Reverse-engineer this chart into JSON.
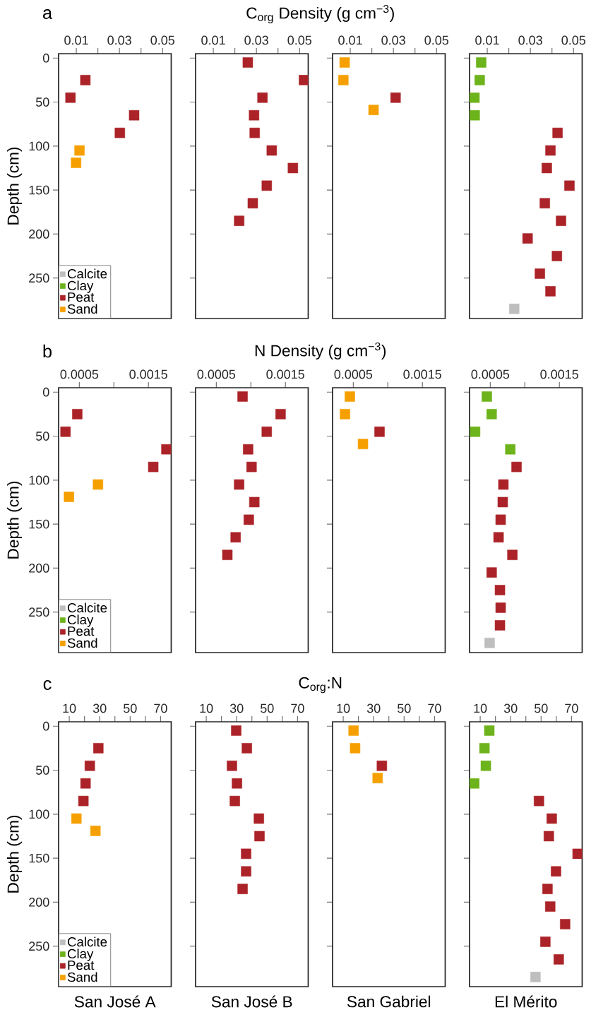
{
  "chart_data": [
    {
      "type": "scatter",
      "title": "a",
      "ylabel": "Depth (cm)",
      "legend": "bottom left",
      "marker": "square",
      "xlim": [
        0.0018,
        0.054
      ],
      "xticks": [
        0.01,
        {
          "value": 0.02,
          "label": null
        },
        0.03,
        {
          "value": 0.04,
          "label": null
        },
        0.05
      ],
      "ylim": [
        296,
        -5
      ],
      "yticks": [
        0,
        50,
        100,
        150,
        200,
        250
      ],
      "series": [
        {
          "name": "Calcite",
          "color": "#bebebe"
        },
        {
          "name": "Clay",
          "color": "#6db31b"
        },
        {
          "name": "Peat",
          "color": "#ab2328",
          "x": [
            0.0142,
            0.0073,
            0.0368,
            0.0302
          ],
          "values": [
            25,
            45,
            65,
            85
          ]
        },
        {
          "name": "Sand",
          "color": "#f5a000",
          "x": [
            0.0115,
            0.0099
          ],
          "values": [
            105,
            119
          ]
        }
      ]
    },
    {
      "type": "scatter",
      "xlabel": "C$_{org}$ Density (g cm$^{−3}$)",
      "marker": "square",
      "tick_labels": "x",
      "xlim": [
        0.0018,
        0.054
      ],
      "xticks": [
        0.01,
        {
          "value": 0.02,
          "label": null
        },
        0.03,
        {
          "value": 0.04,
          "label": null
        },
        0.05
      ],
      "ylim": [
        296,
        -5
      ],
      "yticks": [
        0,
        50,
        100,
        150,
        200,
        250
      ],
      "series": [
        {
          "color": "#ab2328",
          "x": [
            0.026,
            0.052,
            0.0328,
            0.0289,
            0.0292,
            0.0371,
            0.0469,
            0.0348,
            0.0283,
            0.022
          ],
          "values": [
            5,
            25,
            45,
            65,
            85,
            105,
            125,
            145,
            165,
            185
          ]
        }
      ]
    },
    {
      "type": "scatter",
      "marker": "square",
      "tick_labels": "x",
      "xlim": [
        0.0018,
        0.054
      ],
      "xticks": [
        0.01,
        {
          "value": 0.02,
          "label": null
        },
        0.03,
        {
          "value": 0.04,
          "label": null
        },
        0.05
      ],
      "ylim": [
        296,
        -5
      ],
      "yticks": [
        0,
        50,
        100,
        150,
        200,
        250
      ],
      "series": [
        {
          "color": "#ab2328",
          "x": [
            0.031
          ],
          "values": [
            45
          ]
        },
        {
          "color": "#f5a000",
          "x": [
            0.0074,
            0.0068,
            0.0208
          ],
          "values": [
            5,
            25,
            59
          ]
        }
      ]
    },
    {
      "type": "scatter",
      "marker": "square",
      "tick_labels": "x",
      "xlim": [
        0.0018,
        0.054
      ],
      "xticks": [
        0.01,
        {
          "value": 0.02,
          "label": null
        },
        0.03,
        {
          "value": 0.04,
          "label": null
        },
        0.05
      ],
      "ylim": [
        296,
        -5
      ],
      "yticks": [
        0,
        50,
        100,
        150,
        200,
        250
      ],
      "series": [
        {
          "color": "#bebebe",
          "x": [
            0.0225
          ],
          "values": [
            285
          ]
        },
        {
          "color": "#6db31b",
          "x": [
            0.0072,
            0.0065,
            0.0041,
            0.0042
          ],
          "values": [
            5,
            25,
            45,
            65
          ]
        },
        {
          "color": "#ab2328",
          "x": [
            0.0426,
            0.0393,
            0.0376,
            0.0481,
            0.0367,
            0.0442,
            0.0287,
            0.0423,
            0.0344,
            0.0393
          ],
          "values": [
            85,
            105,
            125,
            145,
            165,
            185,
            205,
            225,
            245,
            265
          ]
        }
      ]
    },
    {
      "type": "scatter",
      "title": "b",
      "ylabel": "Depth (cm)",
      "legend": "bottom left",
      "marker": "square",
      "xlim": [
        0.0002,
        0.00183
      ],
      "xticks": [
        0.0005,
        {
          "value": 0.001,
          "label": null
        },
        0.0015
      ],
      "ylim": [
        296,
        -5
      ],
      "yticks": [
        0,
        50,
        100,
        150,
        200,
        250
      ],
      "series": [
        {
          "name": "Calcite",
          "color": "#bebebe"
        },
        {
          "name": "Clay",
          "color": "#6db31b"
        },
        {
          "name": "Peat",
          "color": "#ab2328",
          "x": [
            0.00047,
            0.0003,
            0.00176,
            0.00157
          ],
          "values": [
            25,
            45,
            65,
            85
          ]
        },
        {
          "name": "Sand",
          "color": "#f5a000",
          "x": [
            0.00077,
            0.00035
          ],
          "values": [
            105,
            119
          ]
        }
      ]
    },
    {
      "type": "scatter",
      "xlabel": "N Density (g cm$^{−3}$)",
      "marker": "square",
      "tick_labels": "x",
      "xlim": [
        0.0002,
        0.00183
      ],
      "xticks": [
        0.0005,
        {
          "value": 0.001,
          "label": null
        },
        0.0015
      ],
      "ylim": [
        296,
        -5
      ],
      "yticks": [
        0,
        50,
        100,
        150,
        200,
        250
      ],
      "series": [
        {
          "color": "#ab2328",
          "x": [
            0.00088,
            0.00143,
            0.00123,
            0.00096,
            0.00101,
            0.00083,
            0.00105,
            0.00097,
            0.00078,
            0.00066
          ],
          "values": [
            5,
            25,
            45,
            65,
            85,
            105,
            125,
            145,
            165,
            185
          ]
        }
      ]
    },
    {
      "type": "scatter",
      "marker": "square",
      "tick_labels": "x",
      "xlim": [
        0.0002,
        0.00183
      ],
      "xticks": [
        0.0005,
        {
          "value": 0.001,
          "label": null
        },
        0.0015
      ],
      "ylim": [
        296,
        -5
      ],
      "yticks": [
        0,
        50,
        100,
        150,
        200,
        250
      ],
      "series": [
        {
          "color": "#ab2328",
          "x": [
            0.00088
          ],
          "values": [
            45
          ]
        },
        {
          "color": "#f5a000",
          "x": [
            0.00045,
            0.00038,
            0.00064
          ],
          "values": [
            5,
            25,
            59
          ]
        }
      ]
    },
    {
      "type": "scatter",
      "marker": "square",
      "tick_labels": "x",
      "xlim": [
        0.0002,
        0.00183
      ],
      "xticks": [
        0.0005,
        {
          "value": 0.001,
          "label": null
        },
        0.0015
      ],
      "ylim": [
        296,
        -5
      ],
      "yticks": [
        0,
        50,
        100,
        150,
        200,
        250
      ],
      "series": [
        {
          "color": "#bebebe",
          "x": [
            0.00049
          ],
          "values": [
            285
          ]
        },
        {
          "color": "#6db31b",
          "x": [
            0.00045,
            0.00052,
            0.00028,
            0.00079
          ],
          "values": [
            5,
            25,
            45,
            65
          ]
        },
        {
          "color": "#ab2328",
          "x": [
            0.00088,
            0.00069,
            0.00068,
            0.00065,
            0.00062,
            0.00082,
            0.00052,
            0.00064,
            0.00065,
            0.00064
          ],
          "values": [
            85,
            105,
            125,
            145,
            165,
            185,
            205,
            225,
            245,
            265
          ]
        }
      ]
    },
    {
      "type": "scatter",
      "title": "c",
      "ylabel": "Depth (cm)",
      "legend": "bottom left",
      "marker": "square",
      "annotations": [
        "San José A"
      ],
      "xlim": [
        3,
        77
      ],
      "xticks": [
        10,
        {
          "value": 20,
          "label": null
        },
        30,
        {
          "value": 40,
          "label": null
        },
        50,
        {
          "value": 60,
          "label": null
        },
        70
      ],
      "ylim": [
        296,
        -5
      ],
      "yticks": [
        0,
        50,
        100,
        150,
        200,
        250
      ],
      "series": [
        {
          "name": "Calcite",
          "color": "#bebebe"
        },
        {
          "name": "Clay",
          "color": "#6db31b"
        },
        {
          "name": "Peat",
          "color": "#ab2328",
          "x": [
            29.1,
            23.5,
            20.7,
            19.3
          ],
          "values": [
            25,
            45,
            65,
            85
          ]
        },
        {
          "name": "Sand",
          "color": "#f5a000",
          "x": [
            14.7,
            27.2
          ],
          "values": [
            105,
            119
          ]
        }
      ]
    },
    {
      "type": "scatter",
      "xlabel": "C$_{org}$:N",
      "marker": "square",
      "tick_labels": "x",
      "annotations": [
        "San José B"
      ],
      "xlim": [
        3,
        77
      ],
      "xticks": [
        10,
        {
          "value": 20,
          "label": null
        },
        30,
        {
          "value": 40,
          "label": null
        },
        50,
        {
          "value": 60,
          "label": null
        },
        70
      ],
      "ylim": [
        296,
        -5
      ],
      "yticks": [
        0,
        50,
        100,
        150,
        200,
        250
      ],
      "series": [
        {
          "color": "#ab2328",
          "x": [
            29.7,
            36.7,
            26.9,
            30.2,
            28.8,
            44.6,
            45,
            36.2,
            36.2,
            33.9
          ],
          "values": [
            5,
            25,
            45,
            65,
            85,
            105,
            125,
            145,
            165,
            185
          ]
        }
      ]
    },
    {
      "type": "scatter",
      "marker": "square",
      "tick_labels": "x",
      "annotations": [
        "San Gabriel"
      ],
      "xlim": [
        3,
        77
      ],
      "xticks": [
        10,
        {
          "value": 20,
          "label": null
        },
        30,
        {
          "value": 40,
          "label": null
        },
        50,
        {
          "value": 60,
          "label": null
        },
        70
      ],
      "ylim": [
        296,
        -5
      ],
      "yticks": [
        0,
        50,
        100,
        150,
        200,
        250
      ],
      "series": [
        {
          "color": "#ab2328",
          "x": [
            35.4
          ],
          "values": [
            45
          ]
        },
        {
          "color": "#f5a000",
          "x": [
            16.8,
            17.8,
            32.6
          ],
          "values": [
            5,
            25,
            59
          ]
        }
      ]
    },
    {
      "type": "scatter",
      "marker": "square",
      "tick_labels": "x",
      "annotations": [
        "El Mérito"
      ],
      "xlim": [
        3,
        77
      ],
      "xticks": [
        10,
        {
          "value": 20,
          "label": null
        },
        30,
        {
          "value": 40,
          "label": null
        },
        50,
        {
          "value": 60,
          "label": null
        },
        70
      ],
      "ylim": [
        296,
        -5
      ],
      "yticks": [
        0,
        50,
        100,
        150,
        200,
        250
      ],
      "series": [
        {
          "color": "#bebebe",
          "x": [
            46.3
          ],
          "values": [
            285
          ]
        },
        {
          "color": "#6db31b",
          "x": [
            16,
            12.8,
            13.7,
            6.1
          ],
          "values": [
            5,
            25,
            45,
            65
          ]
        },
        {
          "color": "#ab2328",
          "x": [
            48.6,
            57,
            55.1,
            74,
            59.8,
            54.2,
            56,
            65.8,
            52.8,
            61.6
          ],
          "values": [
            85,
            105,
            125,
            145,
            165,
            185,
            205,
            225,
            245,
            265
          ]
        }
      ]
    }
  ]
}
